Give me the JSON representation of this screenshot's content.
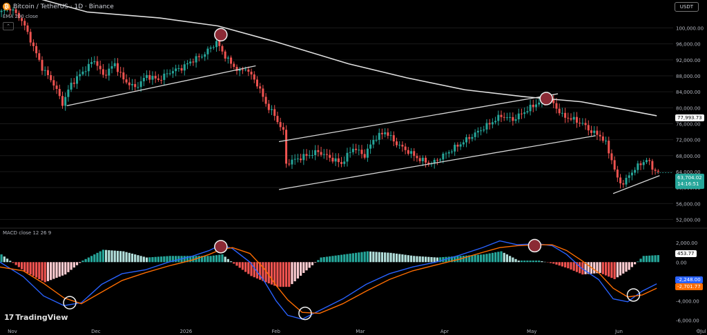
{
  "header": {
    "coin_icon": "bitcoin-icon",
    "title": "Bitcoin / TetherUS · 1D · Binance",
    "ema_label": "EMA 200 close",
    "currency": "USDT"
  },
  "macd_panel": {
    "label": "MACD close 12 26 9"
  },
  "brand": "TradingView",
  "colors": {
    "up": "#26a69a",
    "down": "#ef5350",
    "ema": "#e0e0e0",
    "macd_line": "#2962ff",
    "signal_line": "#ff6d00",
    "hist_up_strong": "#26a69a",
    "hist_up_weak": "#b2dfdb",
    "hist_down_strong": "#ef5350",
    "hist_down_weak": "#ffcdd2",
    "grid": "#1a1a1a"
  },
  "tags": {
    "ema_value": "77,993.73",
    "last_price": "63,704.02",
    "countdown": "14:16:51",
    "hist_value": "453.77",
    "macd_value": "-2,248.00",
    "signal_value": "-2,701.77"
  },
  "chart_data": [
    {
      "type": "candlestick",
      "title": "Bitcoin / TetherUS · 1D · Binance",
      "x_ticks": [
        "Nov",
        "Dec",
        "2026",
        "Feb",
        "Mar",
        "Apr",
        "May",
        "Jun",
        "Jul"
      ],
      "y_ticks": [
        52000,
        56000,
        60000,
        64000,
        68000,
        72000,
        76000,
        80000,
        84000,
        88000,
        92000,
        96000,
        100000
      ],
      "ylim": [
        50000,
        107000
      ],
      "close_path": [
        [
          0,
          104000
        ],
        [
          3,
          105000
        ],
        [
          7,
          102000
        ],
        [
          10,
          97000
        ],
        [
          14,
          90000
        ],
        [
          18,
          86000
        ],
        [
          21,
          81000
        ],
        [
          24,
          86000
        ],
        [
          28,
          89000
        ],
        [
          32,
          92000
        ],
        [
          35,
          88000
        ],
        [
          39,
          91000
        ],
        [
          42,
          87000
        ],
        [
          46,
          85000
        ],
        [
          50,
          88000
        ],
        [
          54,
          87000
        ],
        [
          58,
          89000
        ],
        [
          62,
          90000
        ],
        [
          66,
          92000
        ],
        [
          69,
          93000
        ],
        [
          72,
          95000
        ],
        [
          74,
          96500
        ],
        [
          76,
          94000
        ],
        [
          79,
          91000
        ],
        [
          82,
          89000
        ],
        [
          84,
          90000
        ],
        [
          86,
          88000
        ],
        [
          88,
          86000
        ],
        [
          91,
          81000
        ],
        [
          94,
          78000
        ],
        [
          97,
          74000
        ],
        [
          98,
          66000
        ],
        [
          101,
          67000
        ],
        [
          105,
          68000
        ],
        [
          109,
          69000
        ],
        [
          113,
          67500
        ],
        [
          117,
          66000
        ],
        [
          121,
          70000
        ],
        [
          125,
          68000
        ],
        [
          128,
          72000
        ],
        [
          132,
          74000
        ],
        [
          136,
          71000
        ],
        [
          140,
          69000
        ],
        [
          144,
          67000
        ],
        [
          148,
          66000
        ],
        [
          152,
          68000
        ],
        [
          156,
          70000
        ],
        [
          160,
          72000
        ],
        [
          164,
          74000
        ],
        [
          168,
          76000
        ],
        [
          172,
          78000
        ],
        [
          176,
          77000
        ],
        [
          180,
          79000
        ],
        [
          184,
          81000
        ],
        [
          188,
          82500
        ],
        [
          190,
          81000
        ],
        [
          193,
          78000
        ],
        [
          197,
          77000
        ],
        [
          200,
          76000
        ],
        [
          203,
          74000
        ],
        [
          206,
          73000
        ],
        [
          208,
          71000
        ],
        [
          210,
          67000
        ],
        [
          212,
          62000
        ],
        [
          214,
          61000
        ],
        [
          217,
          64000
        ],
        [
          220,
          66000
        ],
        [
          222,
          67000
        ],
        [
          224,
          65000
        ],
        [
          226,
          63704
        ]
      ],
      "ema200_path": [
        [
          0,
          110000
        ],
        [
          30,
          104000
        ],
        [
          55,
          102500
        ],
        [
          75,
          100500
        ],
        [
          95,
          96500
        ],
        [
          120,
          91000
        ],
        [
          140,
          87500
        ],
        [
          160,
          84500
        ],
        [
          180,
          82800
        ],
        [
          200,
          81500
        ],
        [
          215,
          79500
        ],
        [
          226,
          77994
        ]
      ],
      "trendlines": [
        {
          "from": [
            23,
            80500
          ],
          "to": [
            88,
            90500
          ]
        },
        {
          "from": [
            96,
            59500
          ],
          "to": [
            205,
            73000
          ]
        },
        {
          "from": [
            96,
            71500
          ],
          "to": [
            192,
            83500
          ]
        },
        {
          "from": [
            211,
            58500
          ],
          "to": [
            227,
            63000
          ]
        }
      ],
      "highlight_markers": [
        [
          76,
          98300
        ],
        [
          188,
          82300
        ]
      ],
      "last_price": 63704.02,
      "ema_value": 77993.73
    },
    {
      "type": "macd",
      "title": "MACD close 12 26 9",
      "y_ticks": [
        2000,
        0,
        -4000,
        -6000
      ],
      "ylim": [
        -6400,
        3300
      ],
      "macd_path": [
        [
          0,
          0
        ],
        [
          8,
          -1500
        ],
        [
          15,
          -3500
        ],
        [
          22,
          -4500
        ],
        [
          28,
          -4200
        ],
        [
          35,
          -2300
        ],
        [
          42,
          -1200
        ],
        [
          50,
          -800
        ],
        [
          58,
          0
        ],
        [
          66,
          600
        ],
        [
          72,
          1200
        ],
        [
          76,
          1800
        ],
        [
          80,
          1400
        ],
        [
          86,
          0
        ],
        [
          91,
          -2000
        ],
        [
          95,
          -4000
        ],
        [
          99,
          -5500
        ],
        [
          104,
          -5900
        ],
        [
          110,
          -5000
        ],
        [
          118,
          -3800
        ],
        [
          126,
          -2300
        ],
        [
          134,
          -1200
        ],
        [
          142,
          -500
        ],
        [
          150,
          0
        ],
        [
          158,
          700
        ],
        [
          166,
          1500
        ],
        [
          172,
          2200
        ],
        [
          178,
          1800
        ],
        [
          185,
          1900
        ],
        [
          190,
          1700
        ],
        [
          195,
          800
        ],
        [
          200,
          -600
        ],
        [
          206,
          -1800
        ],
        [
          211,
          -3800
        ],
        [
          216,
          -4100
        ],
        [
          221,
          -3000
        ],
        [
          226,
          -2248
        ]
      ],
      "signal_path": [
        [
          0,
          -500
        ],
        [
          8,
          -900
        ],
        [
          15,
          -2200
        ],
        [
          22,
          -3700
        ],
        [
          28,
          -4300
        ],
        [
          35,
          -3100
        ],
        [
          42,
          -1900
        ],
        [
          50,
          -1100
        ],
        [
          58,
          -400
        ],
        [
          66,
          200
        ],
        [
          72,
          800
        ],
        [
          76,
          1300
        ],
        [
          80,
          1500
        ],
        [
          86,
          900
        ],
        [
          91,
          -700
        ],
        [
          95,
          -2400
        ],
        [
          99,
          -3900
        ],
        [
          104,
          -5200
        ],
        [
          110,
          -5300
        ],
        [
          118,
          -4300
        ],
        [
          126,
          -3000
        ],
        [
          134,
          -1800
        ],
        [
          142,
          -900
        ],
        [
          150,
          -300
        ],
        [
          158,
          300
        ],
        [
          166,
          1000
        ],
        [
          172,
          1500
        ],
        [
          178,
          1700
        ],
        [
          185,
          1800
        ],
        [
          190,
          1800
        ],
        [
          195,
          1200
        ],
        [
          200,
          200
        ],
        [
          206,
          -1100
        ],
        [
          211,
          -2700
        ],
        [
          216,
          -3600
        ],
        [
          221,
          -3400
        ],
        [
          226,
          -2702
        ]
      ],
      "highlight_markers": [
        [
          24,
          -4200
        ],
        [
          76,
          1600
        ],
        [
          105,
          -5300
        ],
        [
          184,
          1700
        ],
        [
          218,
          -3400
        ]
      ],
      "hist_value": 453.77,
      "macd_value": -2248.0,
      "signal_value": -2701.77
    }
  ]
}
